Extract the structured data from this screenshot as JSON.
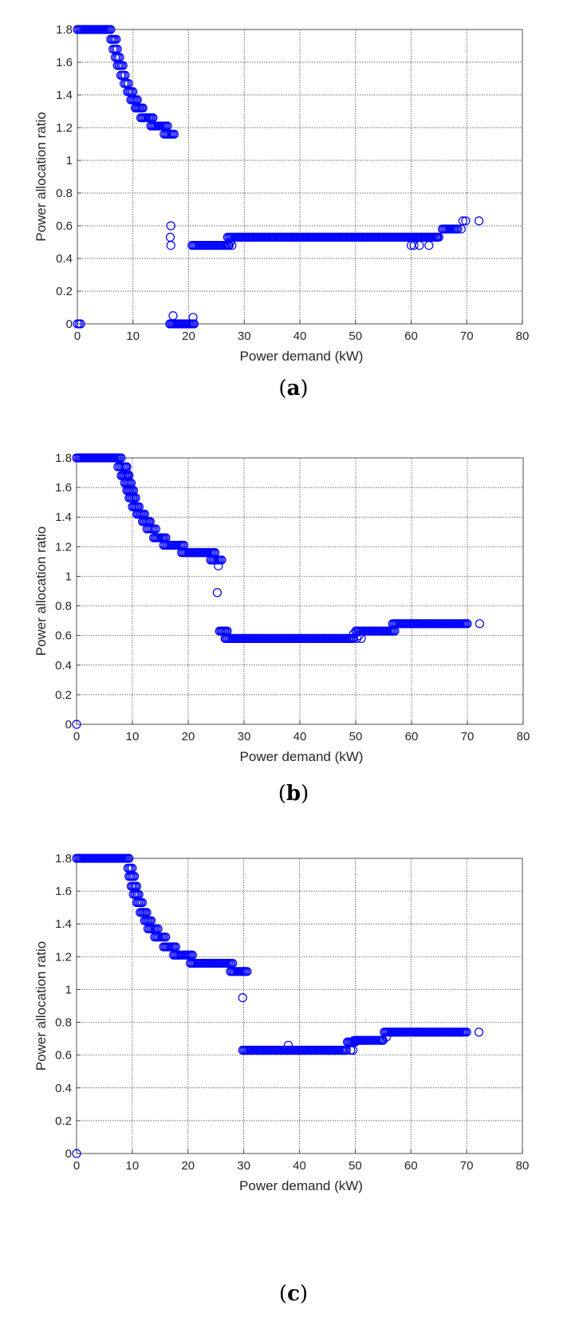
{
  "chart_data": [
    {
      "type": "scatter",
      "title": "",
      "xlabel": "Power demand (kW)",
      "ylabel": "Power allocation ratio",
      "xlim": [
        0,
        80
      ],
      "ylim": [
        0,
        1.8
      ],
      "xticks": [
        "0",
        "10",
        "20",
        "30",
        "40",
        "50",
        "60",
        "70",
        "80"
      ],
      "yticks": [
        "0",
        "0.2",
        "0.4",
        "0.6",
        "0.8",
        "1",
        "1.2",
        "1.4",
        "1.6",
        "1.8"
      ],
      "grid": true,
      "marker": "open-circle",
      "color": "#0000ff",
      "caption_letter": "a",
      "segments": [
        {
          "x": [
            0,
            0.6
          ],
          "y": 0
        },
        {
          "x": [
            0,
            6
          ],
          "y": 1.8
        },
        {
          "x": [
            6,
            7
          ],
          "y": 1.74
        },
        {
          "x": [
            6.4,
            7.2
          ],
          "y": 1.68
        },
        {
          "x": [
            6.8,
            7.6
          ],
          "y": 1.63
        },
        {
          "x": [
            7.2,
            8.2
          ],
          "y": 1.58
        },
        {
          "x": [
            7.8,
            8.6
          ],
          "y": 1.52
        },
        {
          "x": [
            8.4,
            9.2
          ],
          "y": 1.47
        },
        {
          "x": [
            9,
            10
          ],
          "y": 1.42
        },
        {
          "x": [
            9.6,
            10.8
          ],
          "y": 1.37
        },
        {
          "x": [
            10.4,
            11.8
          ],
          "y": 1.32
        },
        {
          "x": [
            11.4,
            13.6
          ],
          "y": 1.26
        },
        {
          "x": [
            13.2,
            16.2
          ],
          "y": 1.21
        },
        {
          "x": [
            15.6,
            17.4
          ],
          "y": 1.16
        },
        {
          "x": [
            16.6,
            21
          ],
          "y": 0
        },
        {
          "x": [
            20.6,
            27.2
          ],
          "y": 0.48
        },
        {
          "x": [
            27,
            60
          ],
          "y": 0.53
        },
        {
          "x": [
            60,
            65
          ],
          "y": 0.53
        },
        {
          "x": [
            65.6,
            68.4
          ],
          "y": 0.58
        }
      ],
      "points": [
        [
          16.8,
          0.6
        ],
        [
          16.7,
          0.53
        ],
        [
          16.8,
          0.48
        ],
        [
          17.2,
          0.05
        ],
        [
          20.8,
          0.04
        ],
        [
          27.3,
          0.48
        ],
        [
          27.8,
          0.48
        ],
        [
          27.5,
          0.5
        ],
        [
          60,
          0.48
        ],
        [
          60.5,
          0.48
        ],
        [
          61.5,
          0.48
        ],
        [
          63.2,
          0.48
        ],
        [
          62.5,
          0.53
        ],
        [
          64,
          0.53
        ],
        [
          64.6,
          0.53
        ],
        [
          69,
          0.58
        ],
        [
          69.3,
          0.63
        ],
        [
          69.8,
          0.63
        ],
        [
          72.2,
          0.63
        ]
      ]
    },
    {
      "type": "scatter",
      "title": "",
      "xlabel": "Power demand (kW)",
      "ylabel": "Power allocation ratio",
      "xlim": [
        0,
        80
      ],
      "ylim": [
        0,
        1.8
      ],
      "xticks": [
        "0",
        "10",
        "20",
        "30",
        "40",
        "50",
        "60",
        "70",
        "80"
      ],
      "yticks": [
        "0",
        "0.2",
        "0.4",
        "0.6",
        "0.8",
        "1",
        "1.2",
        "1.4",
        "1.6",
        "1.8"
      ],
      "grid": true,
      "marker": "open-circle",
      "color": "#0000ff",
      "caption_letter": "b",
      "segments": [
        {
          "x": [
            0,
            8
          ],
          "y": 1.8
        },
        {
          "x": [
            7.4,
            9
          ],
          "y": 1.74
        },
        {
          "x": [
            8,
            9.4
          ],
          "y": 1.68
        },
        {
          "x": [
            8.6,
            9.8
          ],
          "y": 1.63
        },
        {
          "x": [
            9,
            10.2
          ],
          "y": 1.58
        },
        {
          "x": [
            9.4,
            10.6
          ],
          "y": 1.53
        },
        {
          "x": [
            10,
            11.2
          ],
          "y": 1.47
        },
        {
          "x": [
            10.8,
            12.2
          ],
          "y": 1.42
        },
        {
          "x": [
            11.8,
            13.2
          ],
          "y": 1.37
        },
        {
          "x": [
            12.6,
            14.2
          ],
          "y": 1.32
        },
        {
          "x": [
            13.8,
            16
          ],
          "y": 1.26
        },
        {
          "x": [
            15.6,
            19.2
          ],
          "y": 1.21
        },
        {
          "x": [
            18.8,
            24.8
          ],
          "y": 1.16
        },
        {
          "x": [
            24,
            26
          ],
          "y": 1.11
        },
        {
          "x": [
            25.6,
            27
          ],
          "y": 0.63
        },
        {
          "x": [
            26.8,
            49.6
          ],
          "y": 0.58
        },
        {
          "x": [
            50,
            57
          ],
          "y": 0.63
        },
        {
          "x": [
            56.6,
            61
          ],
          "y": 0.68
        },
        {
          "x": [
            61,
            70
          ],
          "y": 0.68
        }
      ],
      "points": [
        [
          0,
          0
        ],
        [
          8.8,
          1.74
        ],
        [
          9.2,
          1.69
        ],
        [
          25.4,
          1.07
        ],
        [
          25.2,
          0.89
        ],
        [
          26.6,
          0.58
        ],
        [
          50.2,
          0.58
        ],
        [
          49.6,
          0.61
        ],
        [
          50.6,
          0.6
        ],
        [
          51,
          0.58
        ],
        [
          72.2,
          0.68
        ]
      ]
    },
    {
      "type": "scatter",
      "title": "",
      "xlabel": "Power demand (kW)",
      "ylabel": "Power allocation ratio",
      "xlim": [
        0,
        80
      ],
      "ylim": [
        0,
        1.8
      ],
      "xticks": [
        "0",
        "10",
        "20",
        "30",
        "40",
        "50",
        "60",
        "70",
        "80"
      ],
      "yticks": [
        "0",
        "0.2",
        "0.4",
        "0.6",
        "0.8",
        "1",
        "1.2",
        "1.4",
        "1.6",
        "1.8"
      ],
      "grid": true,
      "marker": "open-circle",
      "color": "#0000ff",
      "caption_letter": "c",
      "segments": [
        {
          "x": [
            0,
            9.4
          ],
          "y": 1.8
        },
        {
          "x": [
            9.2,
            10
          ],
          "y": 1.74
        },
        {
          "x": [
            9.4,
            10.4
          ],
          "y": 1.69
        },
        {
          "x": [
            9.8,
            10.8
          ],
          "y": 1.63
        },
        {
          "x": [
            10.2,
            11.2
          ],
          "y": 1.58
        },
        {
          "x": [
            10.8,
            11.8
          ],
          "y": 1.53
        },
        {
          "x": [
            11.4,
            12.6
          ],
          "y": 1.47
        },
        {
          "x": [
            12.2,
            13.4
          ],
          "y": 1.42
        },
        {
          "x": [
            12.8,
            14.6
          ],
          "y": 1.37
        },
        {
          "x": [
            14,
            16
          ],
          "y": 1.32
        },
        {
          "x": [
            15.6,
            17.8
          ],
          "y": 1.26
        },
        {
          "x": [
            17.4,
            20.8
          ],
          "y": 1.21
        },
        {
          "x": [
            20.4,
            28
          ],
          "y": 1.16
        },
        {
          "x": [
            27.6,
            30.6
          ],
          "y": 1.11
        },
        {
          "x": [
            29.8,
            48.4
          ],
          "y": 0.63
        },
        {
          "x": [
            48.6,
            50
          ],
          "y": 0.68
        },
        {
          "x": [
            49.8,
            55
          ],
          "y": 0.69
        },
        {
          "x": [
            55.2,
            61
          ],
          "y": 0.74
        },
        {
          "x": [
            61,
            70
          ],
          "y": 0.74
        }
      ],
      "points": [
        [
          0,
          0
        ],
        [
          29.8,
          0.95
        ],
        [
          38,
          0.66
        ],
        [
          49.2,
          0.63
        ],
        [
          49.6,
          0.63
        ],
        [
          54.8,
          0.69
        ],
        [
          55.6,
          0.71
        ],
        [
          72.2,
          0.74
        ]
      ]
    }
  ]
}
